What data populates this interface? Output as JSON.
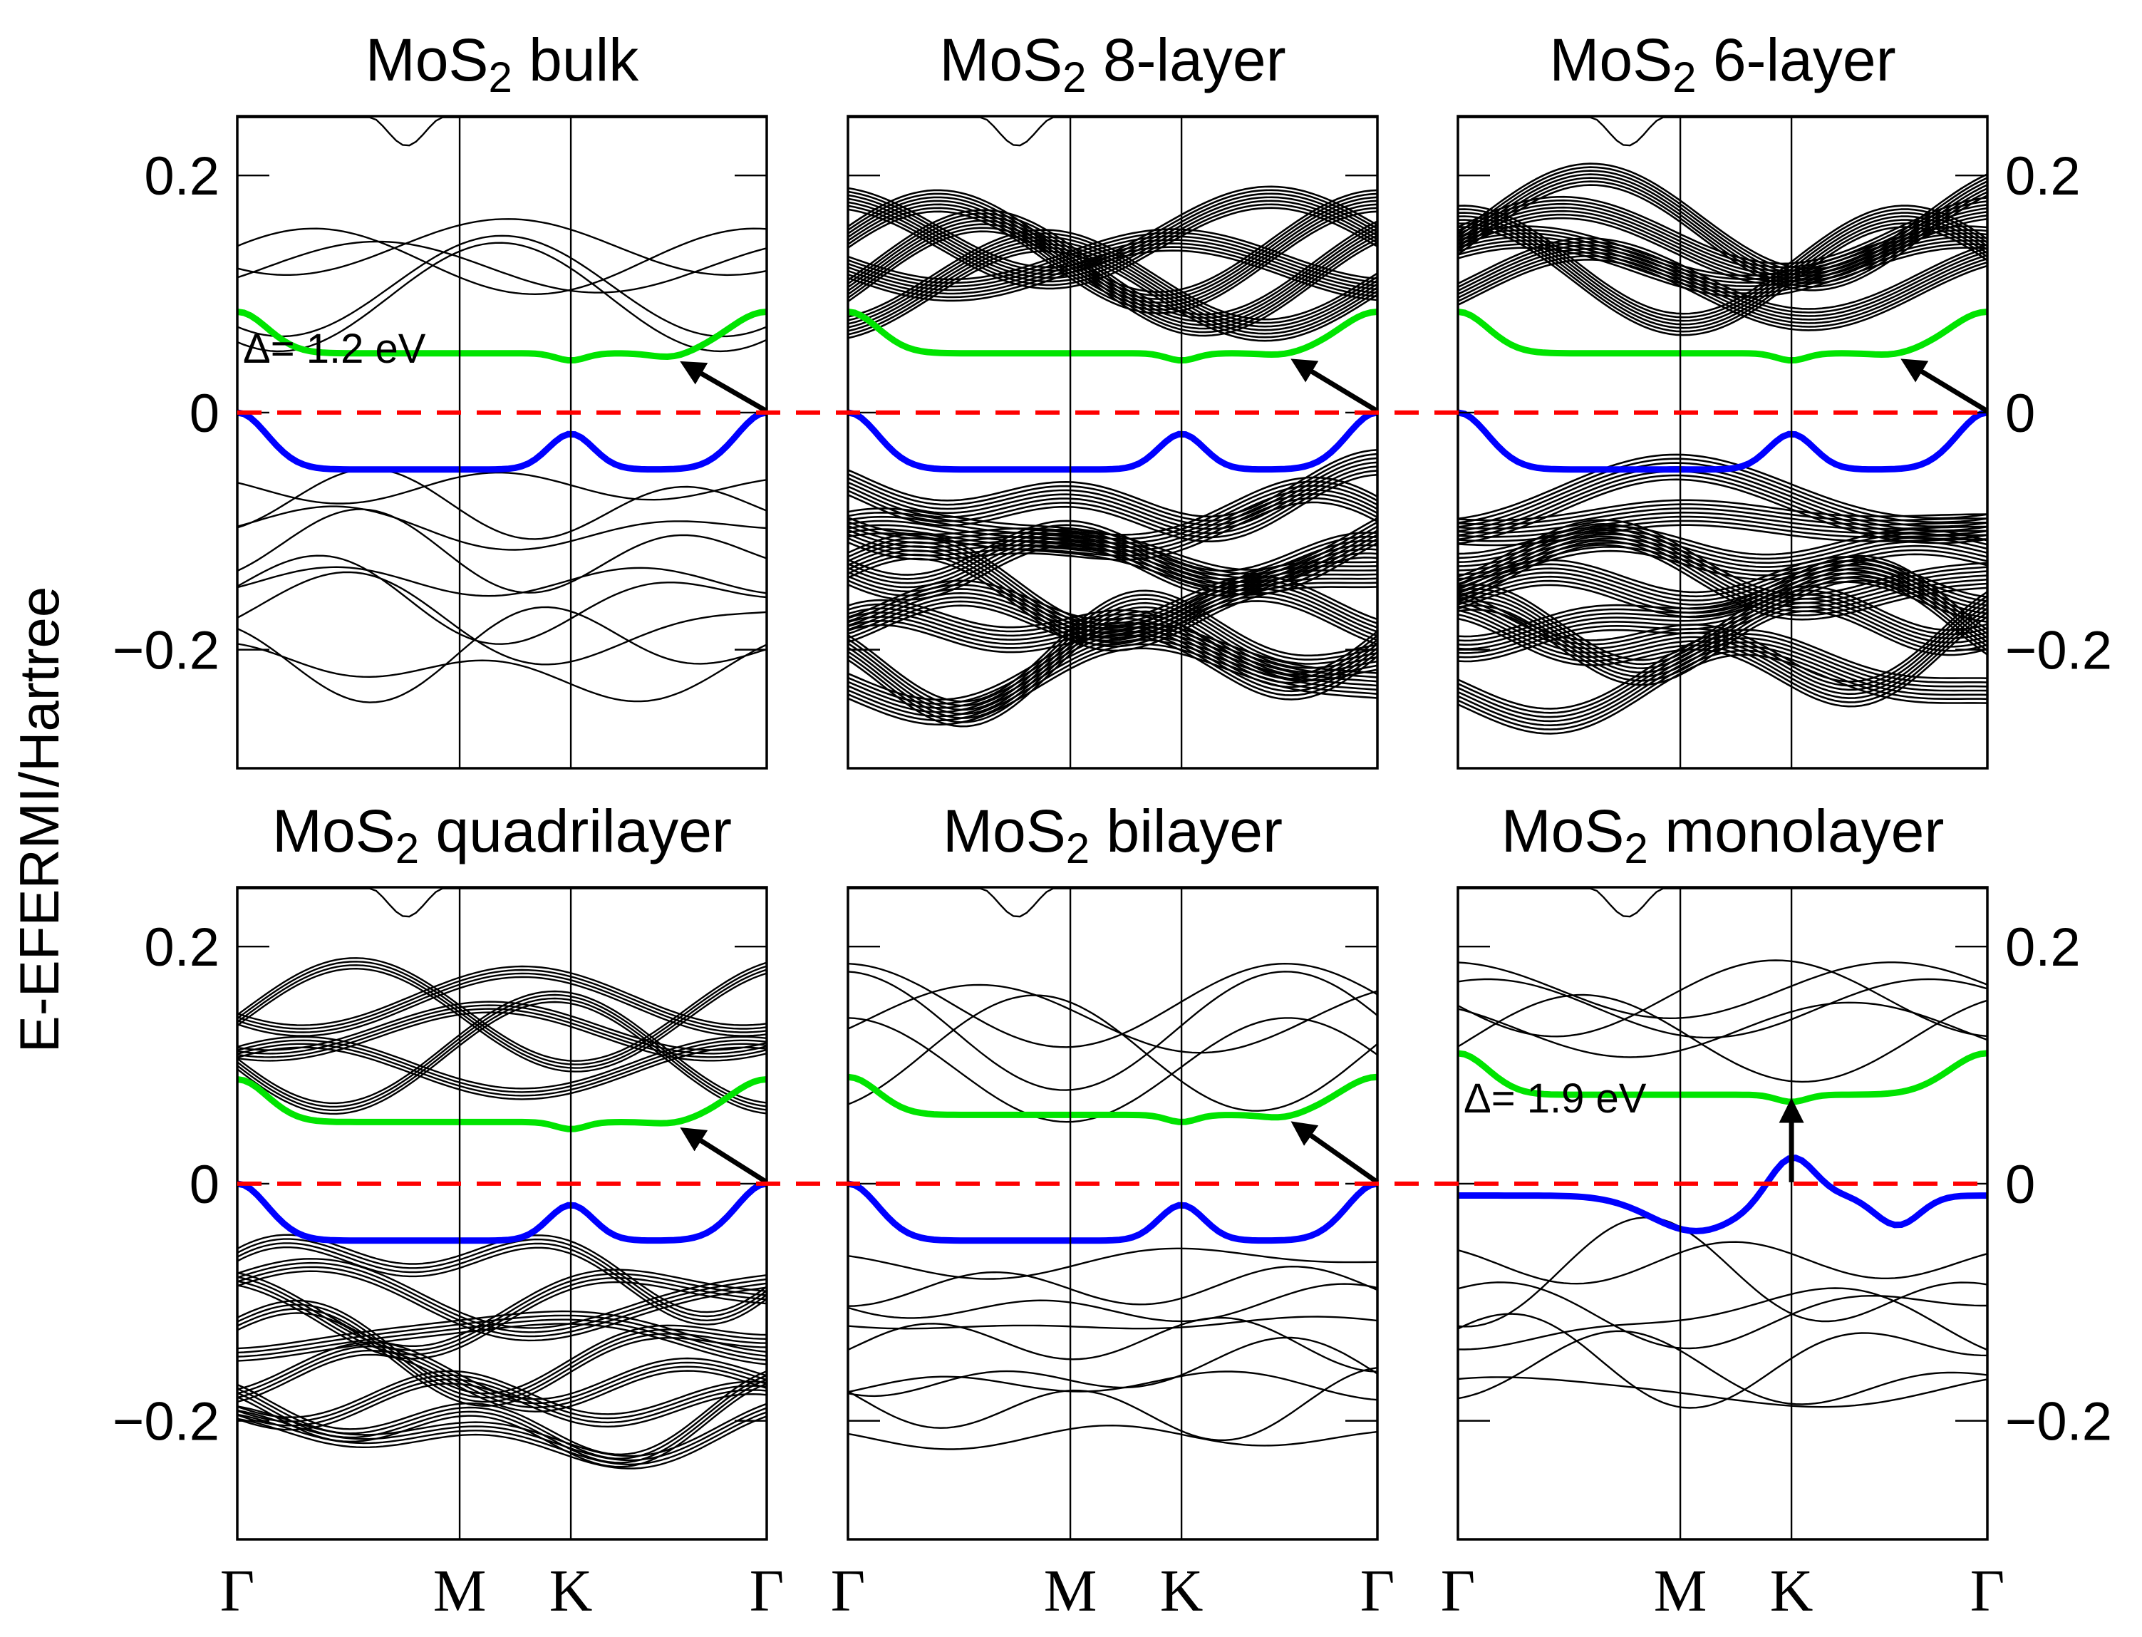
{
  "chart_data": {
    "type": "line",
    "ylabel": "E-EFERMI/Hartree",
    "ylim": [
      -0.3,
      0.25
    ],
    "yticks": [
      -0.2,
      0,
      0.2
    ],
    "ytick_labels": [
      "−0.2",
      "0",
      "0.2"
    ],
    "kpath": [
      "Γ",
      "M",
      "K",
      "Γ"
    ],
    "kpath_positions": [
      0,
      0.42,
      0.63,
      1.0
    ],
    "fermi_level": 0,
    "colors": {
      "bands": "#000000",
      "conduction_band": "#00e400",
      "valence_band": "#0000ff",
      "fermi_line": "#ff0000",
      "arrow": "#000000"
    },
    "panels": [
      {
        "title": "MoS2 bulk",
        "title_main": "MoS",
        "title_sub": "2",
        "title_rest": " bulk",
        "layers": 1,
        "density": "thin",
        "gap_label": "Δ= 1.2 eV",
        "gap_type": "indirect",
        "vbm_k": 1.0,
        "cbm_k": 0.82,
        "cbm_energy": 0.046,
        "cb_min": 0.05,
        "cb_gamma": 0.085
      },
      {
        "title": "MoS2 8-layer",
        "title_main": "MoS",
        "title_sub": "2",
        "title_rest": " 8-layer",
        "layers": 8,
        "density": "thick",
        "gap_label": "",
        "gap_type": "indirect",
        "vbm_k": 1.0,
        "cbm_k": 0.82,
        "cbm_energy": 0.048,
        "cb_min": 0.05,
        "cb_gamma": 0.085
      },
      {
        "title": "MoS2 6-layer",
        "title_main": "MoS",
        "title_sub": "2",
        "title_rest": " 6-layer",
        "layers": 6,
        "density": "thick",
        "gap_label": "",
        "gap_type": "indirect",
        "vbm_k": 1.0,
        "cbm_k": 0.82,
        "cbm_energy": 0.048,
        "cb_min": 0.05,
        "cb_gamma": 0.085
      },
      {
        "title": "MoS2 quadrilayer",
        "title_main": "MoS",
        "title_sub": "2",
        "title_rest": " quadrilayer",
        "layers": 4,
        "density": "medium",
        "gap_label": "",
        "gap_type": "indirect",
        "vbm_k": 1.0,
        "cbm_k": 0.82,
        "cbm_energy": 0.05,
        "cb_min": 0.052,
        "cb_gamma": 0.088
      },
      {
        "title": "MoS2 bilayer",
        "title_main": "MoS",
        "title_sub": "2",
        "title_rest": " bilayer",
        "layers": 2,
        "density": "thin",
        "gap_label": "",
        "gap_type": "indirect",
        "vbm_k": 1.0,
        "cbm_k": 0.82,
        "cbm_energy": 0.055,
        "cb_min": 0.058,
        "cb_gamma": 0.09
      },
      {
        "title": "MoS2 monolayer",
        "title_main": "MoS",
        "title_sub": "2",
        "title_rest": " monolayer",
        "layers": 1,
        "density": "thin",
        "gap_label": "Δ= 1.9 eV",
        "gap_type": "direct",
        "vbm_k": 0.63,
        "cbm_k": 0.63,
        "cbm_energy": 0.073,
        "cb_min": 0.075,
        "cb_gamma": 0.11
      }
    ]
  }
}
